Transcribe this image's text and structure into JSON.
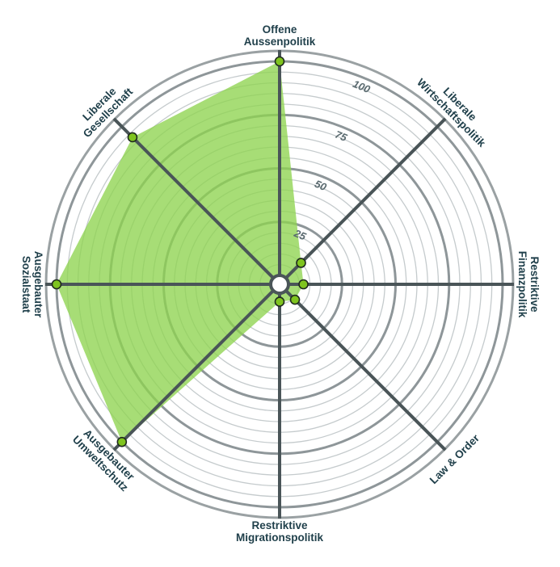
{
  "chart_data": {
    "type": "radar",
    "rmax": 100,
    "grid_step": 5,
    "major_step": 25,
    "ticks": [
      "25",
      "50",
      "75",
      "100"
    ],
    "axes": [
      {
        "label": [
          "Offene",
          "Aussenpolitik"
        ],
        "value": 100
      },
      {
        "label": [
          "Liberale",
          "Wirtschaftspolitik"
        ],
        "value": 10
      },
      {
        "label": [
          "Restriktive",
          "Finanzpolitik"
        ],
        "value": 7
      },
      {
        "label": [
          "Law & Order"
        ],
        "value": 6
      },
      {
        "label": [
          "Restriktive",
          "Migrationspolitik"
        ],
        "value": 4
      },
      {
        "label": [
          "Ausgebauter",
          "Umweltschutz"
        ],
        "value": 100
      },
      {
        "label": [
          "Ausgebauter",
          "Sozialstaat"
        ],
        "value": 100
      },
      {
        "label": [
          "Liberale",
          "Gesellschaft"
        ],
        "value": 93
      }
    ],
    "colors": {
      "fill": "#8ed34f",
      "dot": "#7fc41f",
      "dot_stroke": "#1f2a1f",
      "spoke": "#4a5558",
      "minor_ring": "#c5cbcd",
      "major_ring": "#8e9699",
      "outer_ring": "#9aa1a3",
      "label": "#1f3f4a"
    }
  }
}
